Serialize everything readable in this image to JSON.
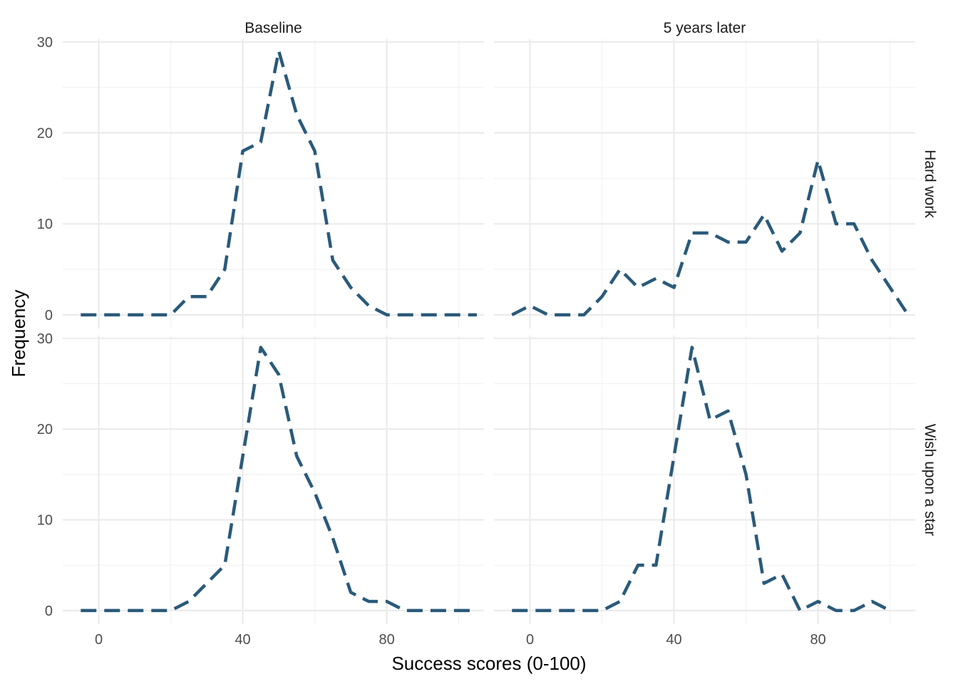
{
  "chart_data": {
    "type": "line",
    "xlabel": "Success scores (0-100)",
    "ylabel": "Frequency",
    "xlim": [
      -10,
      107
    ],
    "ylim": [
      -1.5,
      30.3
    ],
    "x_ticks": [
      0,
      40,
      80
    ],
    "x_minor": [
      20,
      60,
      100
    ],
    "y_ticks": [
      0,
      10,
      20,
      30
    ],
    "y_minor": [
      5,
      15,
      25
    ],
    "column_facets": [
      "Baseline",
      "5 years later"
    ],
    "row_facets": [
      "Hard work",
      "Wish upon a star"
    ],
    "line_color": "#2a5a7a",
    "line_style": "dashed",
    "grid": true,
    "panels": [
      {
        "column": "Baseline",
        "row": "Hard work",
        "x": [
          -5,
          0,
          5,
          10,
          15,
          20,
          25,
          30,
          35,
          40,
          45,
          50,
          55,
          60,
          65,
          70,
          75,
          80,
          85,
          90,
          95,
          100,
          105
        ],
        "y": [
          0,
          0,
          0,
          0,
          0,
          0,
          2,
          2,
          5,
          18,
          19,
          29,
          22,
          18,
          6,
          3,
          1,
          0,
          0,
          0,
          0,
          0,
          0
        ]
      },
      {
        "column": "5 years later",
        "row": "Hard work",
        "x": [
          -5,
          0,
          5,
          10,
          15,
          20,
          25,
          30,
          35,
          40,
          45,
          50,
          55,
          60,
          65,
          70,
          75,
          80,
          85,
          90,
          95,
          100,
          105
        ],
        "y": [
          0,
          1,
          0,
          0,
          0,
          2,
          5,
          3,
          4,
          3,
          9,
          9,
          8,
          8,
          11,
          7,
          9,
          17,
          10,
          10,
          6,
          3,
          0
        ]
      },
      {
        "column": "Baseline",
        "row": "Wish upon a star",
        "x": [
          -5,
          0,
          5,
          10,
          15,
          20,
          25,
          30,
          35,
          40,
          45,
          50,
          55,
          60,
          65,
          70,
          75,
          80,
          85,
          90,
          95,
          100,
          105
        ],
        "y": [
          0,
          0,
          0,
          0,
          0,
          0,
          1,
          3,
          5,
          17,
          29,
          26,
          17,
          13,
          8,
          2,
          1,
          1,
          0,
          0,
          0,
          0,
          0
        ]
      },
      {
        "column": "5 years later",
        "row": "Wish upon a star",
        "x": [
          -5,
          0,
          5,
          10,
          15,
          20,
          25,
          30,
          35,
          40,
          45,
          50,
          55,
          60,
          65,
          70,
          75,
          80,
          85,
          90,
          95,
          100
        ],
        "y": [
          0,
          0,
          0,
          0,
          0,
          0,
          1,
          5,
          5,
          17,
          29,
          21,
          22,
          15,
          3,
          4,
          0,
          1,
          0,
          0,
          1,
          0
        ]
      }
    ]
  }
}
